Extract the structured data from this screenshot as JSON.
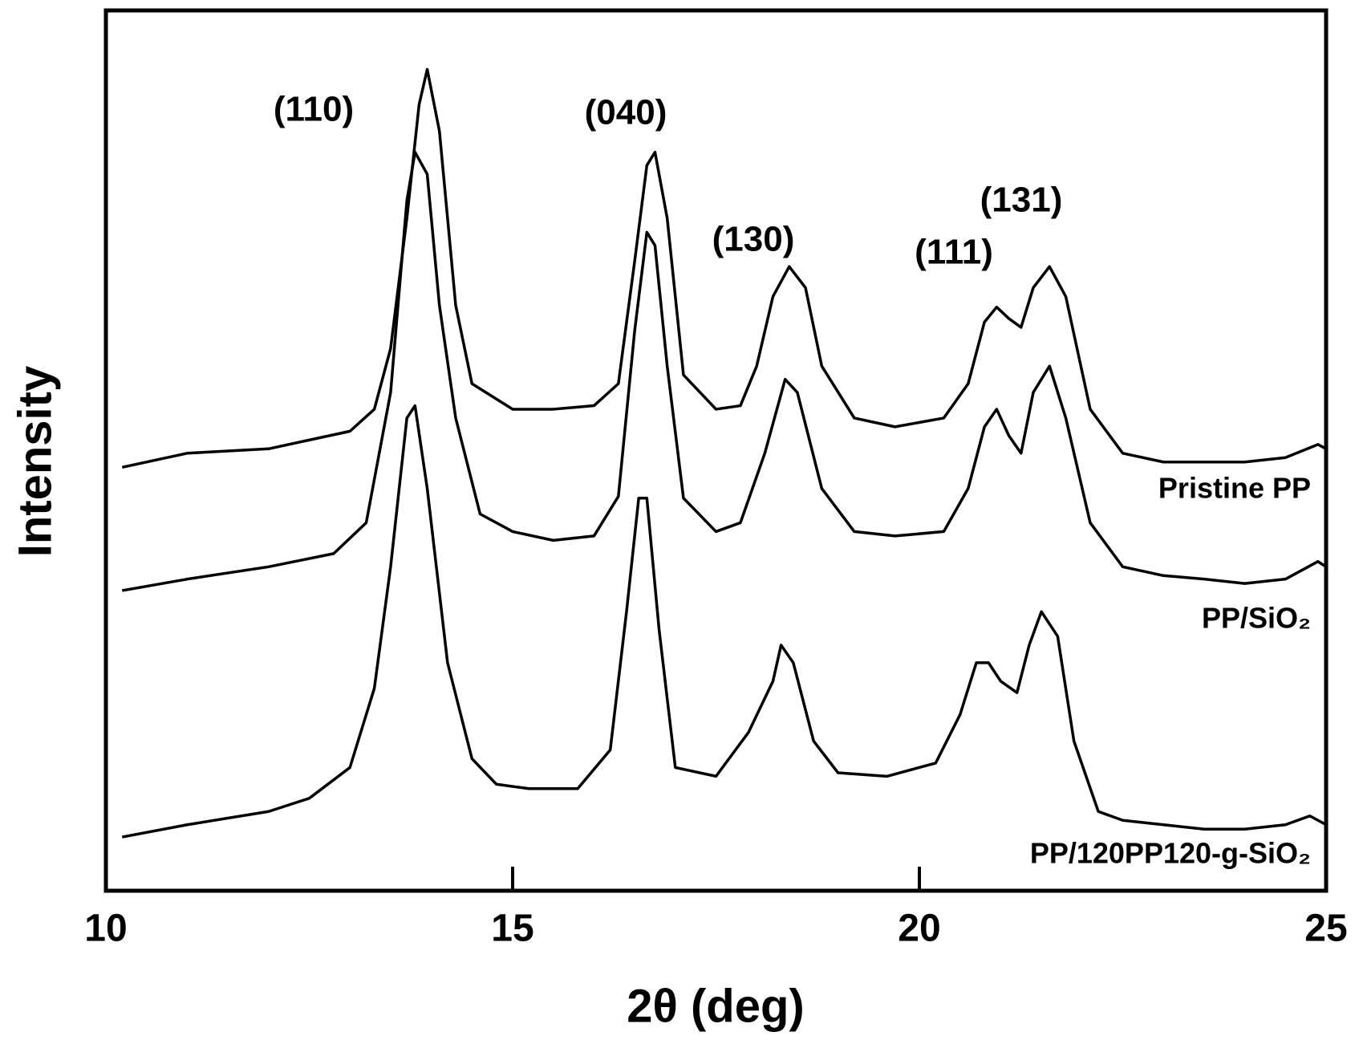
{
  "chart_data": {
    "type": "line",
    "x_label": "2θ (deg)",
    "y_label": "Intensity",
    "xlim": [
      10,
      25
    ],
    "xticks": [
      10,
      15,
      20,
      25
    ],
    "ylim": [
      0,
      100
    ],
    "annotations": [
      "(110)",
      "(040)",
      "(130)",
      "(111)",
      "(131)"
    ],
    "series": [
      {
        "name": "Pristine PP",
        "color": "#000000",
        "x": [
          10.2,
          11,
          12,
          13,
          13.3,
          13.5,
          13.7,
          13.85,
          13.95,
          14.1,
          14.3,
          14.5,
          15,
          15.5,
          16,
          16.3,
          16.5,
          16.65,
          16.75,
          16.9,
          17.1,
          17.5,
          17.8,
          18.0,
          18.2,
          18.4,
          18.6,
          18.8,
          19.2,
          19.7,
          20.3,
          20.6,
          20.8,
          20.95,
          21.1,
          21.25,
          21.4,
          21.6,
          21.8,
          22.1,
          22.5,
          23,
          23.5,
          24,
          24.5,
          24.9,
          25
        ],
        "values": [
          48.1,
          49.7,
          50.2,
          52.2,
          54.7,
          61.6,
          76.4,
          89.3,
          93.3,
          86.3,
          66.5,
          57.6,
          54.7,
          54.7,
          55.1,
          57.6,
          71.5,
          82.4,
          83.9,
          76.4,
          58.6,
          54.7,
          55.1,
          59.6,
          67.5,
          70.9,
          68.5,
          59.6,
          53.7,
          52.7,
          53.7,
          57.6,
          64.6,
          66.3,
          65.0,
          64.0,
          68.5,
          70.9,
          67.5,
          54.7,
          49.7,
          48.7,
          48.7,
          48.7,
          49.2,
          50.7,
          50.2
        ]
      },
      {
        "name": "PP/SiO₂",
        "color": "#000000",
        "x": [
          10.2,
          11,
          12,
          12.8,
          13.2,
          13.5,
          13.7,
          13.8,
          13.95,
          14.1,
          14.3,
          14.6,
          15,
          15.5,
          16,
          16.3,
          16.5,
          16.65,
          16.75,
          16.9,
          17.1,
          17.5,
          17.8,
          18.1,
          18.35,
          18.5,
          18.8,
          19.2,
          19.7,
          20.3,
          20.6,
          20.8,
          20.95,
          21.1,
          21.25,
          21.4,
          21.6,
          21.8,
          22.1,
          22.5,
          23,
          23.5,
          24,
          24.5,
          24.9,
          25
        ],
        "values": [
          34.1,
          35.4,
          36.8,
          38.3,
          41.8,
          56.6,
          78.4,
          83.9,
          81.4,
          66.5,
          53.7,
          42.8,
          40.8,
          39.8,
          40.3,
          44.8,
          63.6,
          74.8,
          73.3,
          59.6,
          44.6,
          40.8,
          41.8,
          49.7,
          58.1,
          56.6,
          45.7,
          40.8,
          40.3,
          40.8,
          45.7,
          52.7,
          54.7,
          51.7,
          49.7,
          56.6,
          59.6,
          53.7,
          41.8,
          36.8,
          35.8,
          35.4,
          34.9,
          35.4,
          37.4,
          36.8
        ]
      },
      {
        "name": "PP/120PP120-g-SiO₂",
        "color": "#000000",
        "x": [
          10.2,
          11,
          12,
          12.5,
          13.0,
          13.3,
          13.5,
          13.7,
          13.8,
          13.95,
          14.2,
          14.5,
          14.8,
          15.2,
          15.8,
          16.2,
          16.4,
          16.55,
          16.65,
          16.8,
          17.0,
          17.5,
          17.9,
          18.2,
          18.3,
          18.45,
          18.7,
          19.0,
          19.6,
          20.2,
          20.5,
          20.7,
          20.85,
          21.0,
          21.2,
          21.35,
          21.5,
          21.7,
          21.9,
          22.2,
          22.5,
          23,
          23.5,
          24,
          24.5,
          24.8,
          25
        ],
        "values": [
          6.1,
          7.5,
          9.0,
          10.5,
          14.0,
          23.0,
          36.8,
          53.7,
          55.1,
          45.7,
          25.9,
          15.0,
          12.1,
          11.6,
          11.6,
          16.0,
          31.7,
          44.6,
          44.6,
          29.7,
          14.0,
          13.0,
          18.0,
          23.8,
          27.9,
          25.9,
          17.0,
          13.4,
          13.0,
          14.5,
          20.0,
          25.9,
          25.9,
          23.8,
          22.5,
          27.9,
          31.7,
          28.9,
          17.0,
          9.0,
          8.0,
          7.5,
          7.0,
          7.0,
          7.5,
          8.5,
          7.5
        ]
      }
    ]
  }
}
